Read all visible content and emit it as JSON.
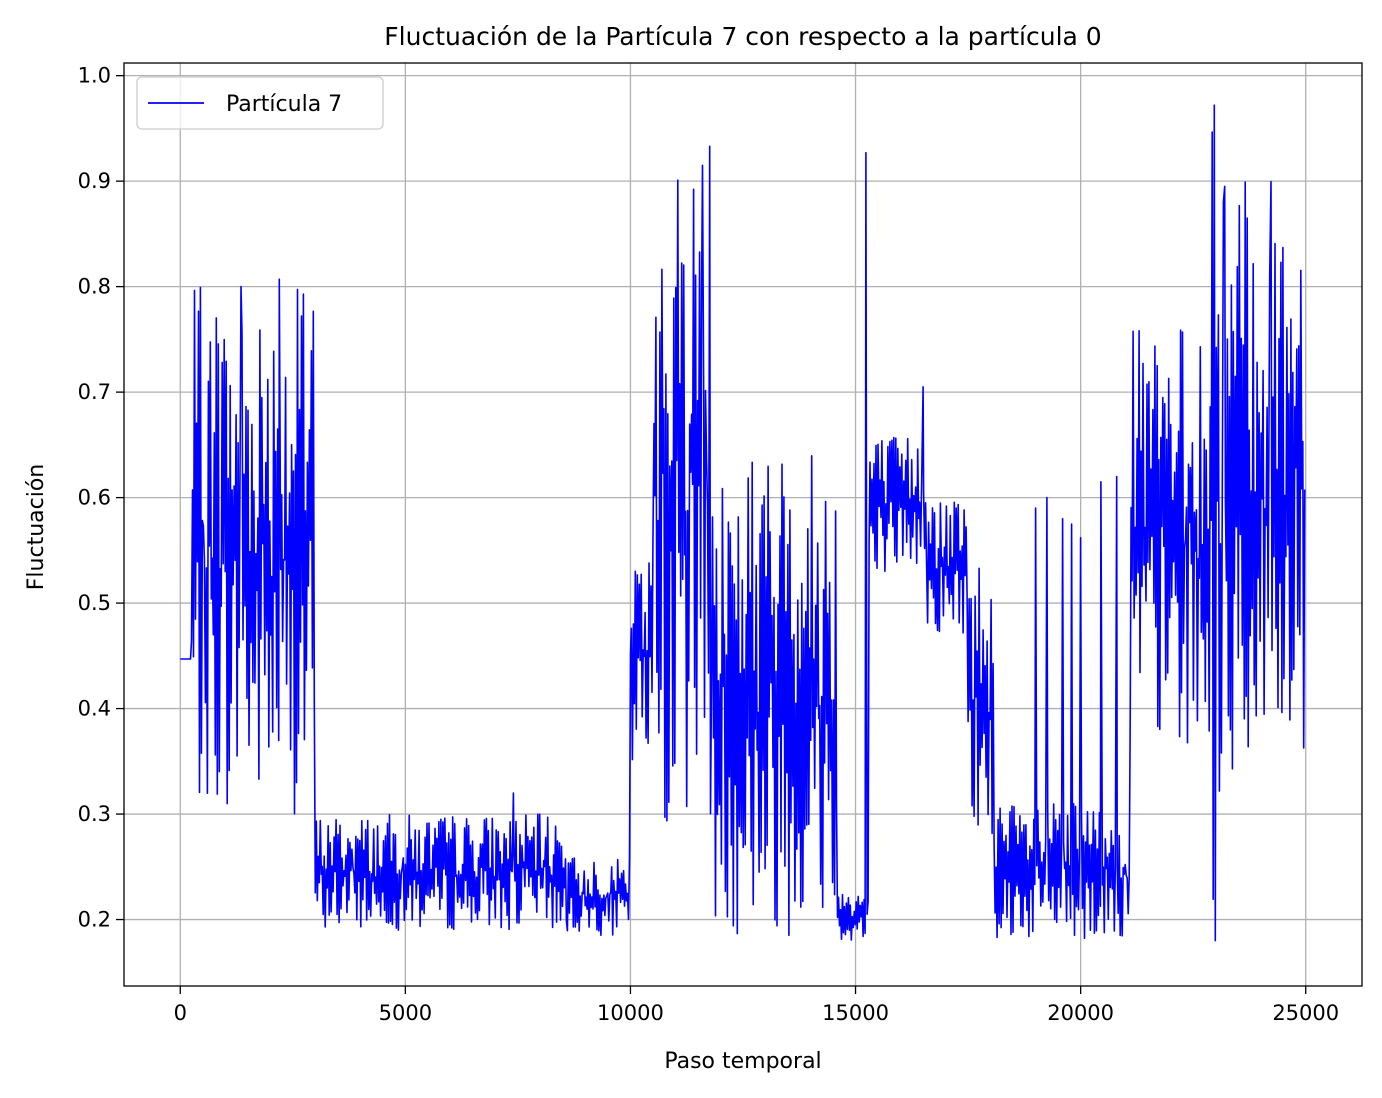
{
  "chart_data": {
    "type": "line",
    "title": "Fluctuación de la Partícula 7 con respecto a la partícula 0",
    "xlabel": "Paso temporal",
    "ylabel": "Fluctuación",
    "xlim": [
      -1250,
      26250
    ],
    "ylim": [
      0.137,
      1.012
    ],
    "xticks": [
      0,
      5000,
      10000,
      15000,
      20000,
      25000
    ],
    "xtick_labels": [
      "0",
      "5000",
      "10000",
      "15000",
      "20000",
      "25000"
    ],
    "yticks": [
      0.2,
      0.3,
      0.4,
      0.5,
      0.6,
      0.7,
      0.8,
      0.9,
      1.0
    ],
    "ytick_labels": [
      "0.2",
      "0.3",
      "0.4",
      "0.5",
      "0.6",
      "0.7",
      "0.8",
      "0.9",
      "1.0"
    ],
    "grid": true,
    "legend": {
      "position": "top-left",
      "entries": [
        "Partícula 7"
      ]
    },
    "series": [
      {
        "name": "Partícula 7",
        "color": "#0000ff",
        "segments": [
          {
            "x_start": 0,
            "x_end": 250,
            "pattern": "flat",
            "lo": 0.447,
            "hi": 0.447
          },
          {
            "x_start": 250,
            "x_end": 3000,
            "pattern": "noise",
            "lo": 0.3,
            "hi": 0.8
          },
          {
            "x_start": 3000,
            "x_end": 8600,
            "pattern": "noise",
            "lo": 0.19,
            "hi": 0.3
          },
          {
            "x_start": 8600,
            "x_end": 10000,
            "pattern": "noise",
            "lo": 0.185,
            "hi": 0.26
          },
          {
            "x_start": 10000,
            "x_end": 10500,
            "pattern": "noise",
            "lo": 0.33,
            "hi": 0.57
          },
          {
            "x_start": 10500,
            "x_end": 11800,
            "pattern": "noise",
            "lo": 0.29,
            "hi": 0.93
          },
          {
            "x_start": 11800,
            "x_end": 14600,
            "pattern": "noise",
            "lo": 0.185,
            "hi": 0.65
          },
          {
            "x_start": 14600,
            "x_end": 15300,
            "pattern": "noise",
            "lo": 0.18,
            "hi": 0.23
          },
          {
            "x_start": 15300,
            "x_end": 16600,
            "pattern": "noise",
            "lo": 0.53,
            "hi": 0.66
          },
          {
            "x_start": 16600,
            "x_end": 17500,
            "pattern": "noise",
            "lo": 0.47,
            "hi": 0.6
          },
          {
            "x_start": 17500,
            "x_end": 18100,
            "pattern": "noise",
            "lo": 0.27,
            "hi": 0.55
          },
          {
            "x_start": 18100,
            "x_end": 21100,
            "pattern": "noise",
            "lo": 0.18,
            "hi": 0.31
          },
          {
            "x_start": 21100,
            "x_end": 22900,
            "pattern": "noise",
            "lo": 0.36,
            "hi": 0.76
          },
          {
            "x_start": 22900,
            "x_end": 23150,
            "pattern": "noise",
            "lo": 0.18,
            "hi": 0.97
          },
          {
            "x_start": 23150,
            "x_end": 25000,
            "pattern": "noise",
            "lo": 0.33,
            "hi": 0.9
          }
        ],
        "spikes": [
          {
            "x": 1350,
            "y": 0.8
          },
          {
            "x": 2200,
            "y": 0.807
          },
          {
            "x": 7400,
            "y": 0.32
          },
          {
            "x": 11600,
            "y": 0.915
          },
          {
            "x": 11760,
            "y": 0.933
          },
          {
            "x": 15230,
            "y": 0.927
          },
          {
            "x": 16500,
            "y": 0.705
          },
          {
            "x": 19000,
            "y": 0.59
          },
          {
            "x": 19250,
            "y": 0.6
          },
          {
            "x": 19600,
            "y": 0.58
          },
          {
            "x": 19800,
            "y": 0.575
          },
          {
            "x": 20000,
            "y": 0.562
          },
          {
            "x": 20450,
            "y": 0.615
          },
          {
            "x": 20800,
            "y": 0.62
          },
          {
            "x": 21700,
            "y": 0.725
          },
          {
            "x": 22970,
            "y": 0.972
          },
          {
            "x": 23200,
            "y": 0.895
          },
          {
            "x": 24200,
            "y": 0.81
          }
        ]
      }
    ]
  }
}
